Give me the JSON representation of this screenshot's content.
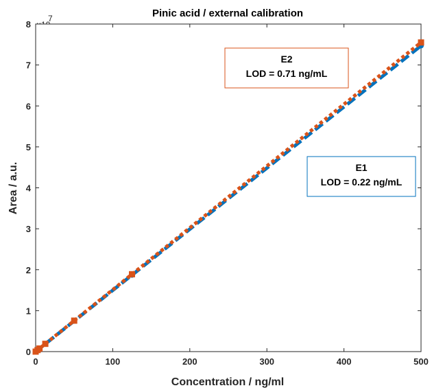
{
  "chart_data": {
    "type": "line",
    "title": "Pinic acid / external calibration",
    "xlabel": "Concentration / ng/ml",
    "ylabel": "Area / a.u.",
    "y_exponent_label": "×10",
    "y_exponent_power": "7",
    "xlim": [
      0,
      500
    ],
    "ylim": [
      0,
      80000000
    ],
    "xticks": [
      0,
      100,
      200,
      300,
      400,
      500
    ],
    "yticks": [
      0,
      10000000,
      20000000,
      30000000,
      40000000,
      50000000,
      60000000,
      70000000,
      80000000
    ],
    "xtick_labels": [
      "0",
      "100",
      "200",
      "300",
      "400",
      "500"
    ],
    "ytick_labels": [
      "0",
      "1",
      "2",
      "3",
      "4",
      "5",
      "6",
      "7",
      "8"
    ],
    "grid": false,
    "series": [
      {
        "name": "E1",
        "color": "#0072BD",
        "line_style": "dashed",
        "x": [
          0,
          2.5,
          5,
          12.5,
          50,
          125,
          500
        ],
        "y": [
          0,
          380000,
          750000,
          1870000,
          7480000,
          18700000,
          74700000
        ]
      },
      {
        "name": "E2",
        "color": "#D95319",
        "line_style": "dotted",
        "x": [
          0,
          2.5,
          5,
          12.5,
          50,
          125,
          500
        ],
        "y": [
          0,
          380000,
          760000,
          1900000,
          7560000,
          18900000,
          75500000
        ]
      }
    ],
    "annotations": [
      {
        "series": "E2",
        "line1": "E2",
        "line2": "LOD = 0.71 ng/mL",
        "color": "#D95319"
      },
      {
        "series": "E1",
        "line1": "E1",
        "line2": "LOD = 0.22 ng/mL",
        "color": "#0072BD"
      }
    ]
  }
}
